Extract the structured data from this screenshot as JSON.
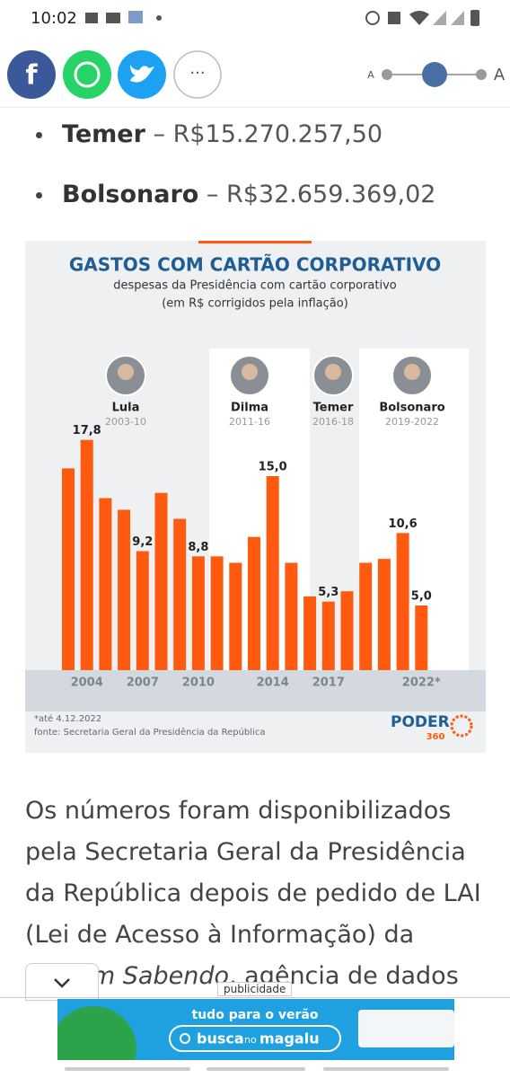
{
  "status_bar": {
    "time": "10:02"
  },
  "share": {
    "more": "···"
  },
  "font_size": {
    "small": "A",
    "large": "A"
  },
  "list": [
    {
      "name": "Temer",
      "amount": "– R$15.270.257,50"
    },
    {
      "name": "Bolsonaro",
      "amount": "– R$32.659.369,02"
    }
  ],
  "chart_data": {
    "type": "bar",
    "title": "GASTOS COM CARTÃO CORPORATIVO",
    "subtitle": [
      "despesas da Presidência com cartão corporativo",
      "(em R$ corrigidos pela inflação)"
    ],
    "categories": [
      null,
      "2004",
      null,
      null,
      "2007",
      null,
      null,
      "2010",
      null,
      null,
      null,
      "2014",
      null,
      null,
      "2017",
      null,
      null,
      null,
      null,
      "2022*"
    ],
    "values": [
      15.6,
      17.8,
      13.3,
      12.4,
      9.2,
      13.7,
      11.7,
      8.8,
      8.8,
      8.3,
      10.3,
      15.0,
      8.3,
      5.7,
      5.3,
      6.1,
      8.3,
      8.6,
      10.6,
      5.0
    ],
    "value_labels": [
      null,
      "17,8",
      null,
      null,
      "9,2",
      null,
      null,
      "8,8",
      null,
      null,
      null,
      "15,0",
      null,
      null,
      "5,3",
      null,
      null,
      null,
      "10,6",
      "5,0"
    ],
    "color": "#ff5a0f",
    "periods": [
      {
        "name": "Lula",
        "years": "2003-10"
      },
      {
        "name": "Dilma",
        "years": "2011-16"
      },
      {
        "name": "Temer",
        "years": "2016-18"
      },
      {
        "name": "Bolsonaro",
        "years": "2019-2022"
      }
    ],
    "notes": [
      "*até 4.12.2022",
      "fonte: Secretaria Geral da Presidência da República"
    ],
    "logo": {
      "name": "PODER",
      "number": "360"
    }
  },
  "paragraph": {
    "text": "Os números foram disponibilizados pela Secretaria Geral da Presidência da República depois de pedido de LAI (Lei de Acesso à Informação) da ",
    "italic": "Fiquem Sabendo",
    "rest": ", agência de dados"
  },
  "ad": {
    "label": "publicidade",
    "headline": "tudo para o verão",
    "search": "busca",
    "no": "no",
    "brand": "magalu"
  }
}
